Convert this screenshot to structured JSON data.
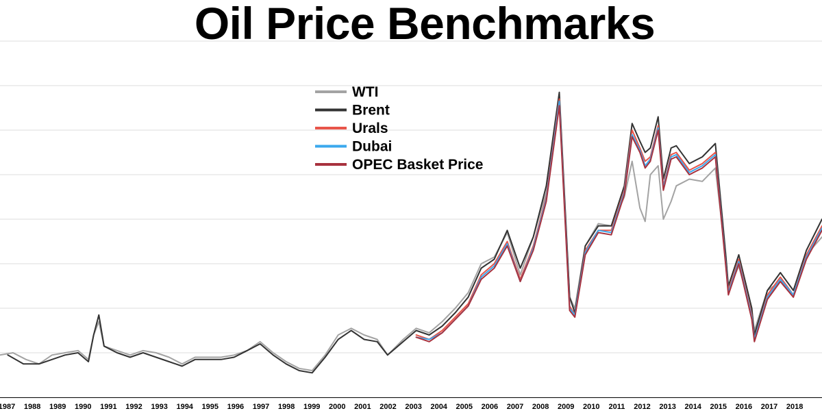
{
  "title": "Oil Price Benchmarks",
  "chart_data": {
    "type": "line",
    "title": "Oil Price Benchmarks",
    "xlabel": "",
    "ylabel": "",
    "xlim": [
      1987.0,
      2018.6
    ],
    "ylim": [
      0,
      160
    ],
    "grid": "horizontal",
    "legend_position": "top-center",
    "x_tick_labels": [
      "1987",
      "1988",
      "1989",
      "1990",
      "1991",
      "1992",
      "1993",
      "1994",
      "1995",
      "1996",
      "1997",
      "1998",
      "1999",
      "2000",
      "2001",
      "2002",
      "2003",
      "2004",
      "2005",
      "2006",
      "2007",
      "2008",
      "2009",
      "2010",
      "2011",
      "2012",
      "2013",
      "2014",
      "2015",
      "2016",
      "2017",
      "2018"
    ],
    "series": [
      {
        "name": "WTI",
        "color": "#a3a3a3",
        "points": [
          [
            1987.0,
            19
          ],
          [
            1987.5,
            20
          ],
          [
            1988.0,
            17
          ],
          [
            1988.5,
            15
          ],
          [
            1989.0,
            19
          ],
          [
            1989.5,
            20
          ],
          [
            1990.0,
            21
          ],
          [
            1990.4,
            17
          ],
          [
            1990.6,
            28
          ],
          [
            1990.8,
            34
          ],
          [
            1991.0,
            23
          ],
          [
            1991.5,
            21
          ],
          [
            1992.0,
            19
          ],
          [
            1992.5,
            21
          ],
          [
            1993.0,
            20
          ],
          [
            1993.5,
            18
          ],
          [
            1994.0,
            15
          ],
          [
            1994.5,
            18
          ],
          [
            1995.0,
            18
          ],
          [
            1995.5,
            18
          ],
          [
            1996.0,
            19
          ],
          [
            1996.5,
            21
          ],
          [
            1997.0,
            25
          ],
          [
            1997.5,
            20
          ],
          [
            1998.0,
            16
          ],
          [
            1998.5,
            13
          ],
          [
            1999.0,
            12
          ],
          [
            1999.5,
            19
          ],
          [
            2000.0,
            28
          ],
          [
            2000.5,
            31
          ],
          [
            2001.0,
            28
          ],
          [
            2001.5,
            26
          ],
          [
            2001.9,
            19
          ],
          [
            2002.5,
            26
          ],
          [
            2003.0,
            31
          ],
          [
            2003.5,
            29
          ],
          [
            2004.0,
            34
          ],
          [
            2004.5,
            40
          ],
          [
            2005.0,
            47
          ],
          [
            2005.5,
            60
          ],
          [
            2006.0,
            63
          ],
          [
            2006.5,
            74
          ],
          [
            2007.0,
            55
          ],
          [
            2007.5,
            72
          ],
          [
            2008.0,
            92
          ],
          [
            2008.5,
            133
          ],
          [
            2008.9,
            45
          ],
          [
            2009.1,
            40
          ],
          [
            2009.5,
            68
          ],
          [
            2010.0,
            78
          ],
          [
            2010.5,
            77
          ],
          [
            2011.0,
            90
          ],
          [
            2011.3,
            106
          ],
          [
            2011.6,
            85
          ],
          [
            2011.8,
            79
          ],
          [
            2012.0,
            100
          ],
          [
            2012.3,
            104
          ],
          [
            2012.5,
            80
          ],
          [
            2012.8,
            88
          ],
          [
            2013.0,
            95
          ],
          [
            2013.5,
            98
          ],
          [
            2014.0,
            97
          ],
          [
            2014.5,
            103
          ],
          [
            2014.9,
            63
          ],
          [
            2015.0,
            48
          ],
          [
            2015.4,
            59
          ],
          [
            2015.9,
            38
          ],
          [
            2016.0,
            30
          ],
          [
            2016.5,
            48
          ],
          [
            2017.0,
            52
          ],
          [
            2017.5,
            46
          ],
          [
            2018.0,
            64
          ],
          [
            2018.6,
            72
          ]
        ]
      },
      {
        "name": "Brent",
        "color": "#333333",
        "points": [
          [
            1987.3,
            19
          ],
          [
            1987.9,
            15
          ],
          [
            1988.5,
            15
          ],
          [
            1989.0,
            17
          ],
          [
            1989.5,
            19
          ],
          [
            1990.0,
            20
          ],
          [
            1990.4,
            16
          ],
          [
            1990.6,
            28
          ],
          [
            1990.8,
            37
          ],
          [
            1991.0,
            23
          ],
          [
            1991.5,
            20
          ],
          [
            1992.0,
            18
          ],
          [
            1992.5,
            20
          ],
          [
            1993.0,
            18
          ],
          [
            1993.5,
            16
          ],
          [
            1994.0,
            14
          ],
          [
            1994.5,
            17
          ],
          [
            1995.0,
            17
          ],
          [
            1995.5,
            17
          ],
          [
            1996.0,
            18
          ],
          [
            1996.5,
            21
          ],
          [
            1997.0,
            24
          ],
          [
            1997.5,
            19
          ],
          [
            1998.0,
            15
          ],
          [
            1998.5,
            12
          ],
          [
            1999.0,
            11
          ],
          [
            1999.5,
            18
          ],
          [
            2000.0,
            26
          ],
          [
            2000.5,
            30
          ],
          [
            2001.0,
            26
          ],
          [
            2001.5,
            25
          ],
          [
            2001.9,
            19
          ],
          [
            2002.5,
            25
          ],
          [
            2003.0,
            30
          ],
          [
            2003.5,
            28
          ],
          [
            2004.0,
            32
          ],
          [
            2004.5,
            38
          ],
          [
            2005.0,
            45
          ],
          [
            2005.5,
            58
          ],
          [
            2006.0,
            62
          ],
          [
            2006.5,
            75
          ],
          [
            2007.0,
            58
          ],
          [
            2007.5,
            72
          ],
          [
            2008.0,
            95
          ],
          [
            2008.5,
            137
          ],
          [
            2008.9,
            45
          ],
          [
            2009.1,
            38
          ],
          [
            2009.5,
            68
          ],
          [
            2010.0,
            77
          ],
          [
            2010.5,
            77
          ],
          [
            2011.0,
            95
          ],
          [
            2011.3,
            123
          ],
          [
            2011.6,
            115
          ],
          [
            2011.8,
            110
          ],
          [
            2012.0,
            112
          ],
          [
            2012.3,
            126
          ],
          [
            2012.5,
            98
          ],
          [
            2012.8,
            112
          ],
          [
            2013.0,
            113
          ],
          [
            2013.5,
            105
          ],
          [
            2014.0,
            108
          ],
          [
            2014.5,
            114
          ],
          [
            2014.9,
            64
          ],
          [
            2015.0,
            50
          ],
          [
            2015.4,
            64
          ],
          [
            2015.9,
            40
          ],
          [
            2016.0,
            28
          ],
          [
            2016.5,
            48
          ],
          [
            2017.0,
            56
          ],
          [
            2017.5,
            48
          ],
          [
            2018.0,
            66
          ],
          [
            2018.6,
            80
          ]
        ]
      },
      {
        "name": "Urals",
        "color": "#e8554a",
        "points": [
          [
            2003.0,
            28
          ],
          [
            2003.5,
            26
          ],
          [
            2004.0,
            30
          ],
          [
            2004.5,
            36
          ],
          [
            2005.0,
            42
          ],
          [
            2005.5,
            55
          ],
          [
            2006.0,
            60
          ],
          [
            2006.5,
            70
          ],
          [
            2007.0,
            53
          ],
          [
            2007.5,
            68
          ],
          [
            2008.0,
            90
          ],
          [
            2008.5,
            134
          ],
          [
            2008.9,
            41
          ],
          [
            2009.1,
            37
          ],
          [
            2009.5,
            66
          ],
          [
            2010.0,
            75
          ],
          [
            2010.5,
            75
          ],
          [
            2011.0,
            93
          ],
          [
            2011.3,
            120
          ],
          [
            2011.6,
            112
          ],
          [
            2011.8,
            106
          ],
          [
            2012.0,
            108
          ],
          [
            2012.3,
            122
          ],
          [
            2012.5,
            95
          ],
          [
            2012.8,
            109
          ],
          [
            2013.0,
            110
          ],
          [
            2013.5,
            102
          ],
          [
            2014.0,
            105
          ],
          [
            2014.5,
            110
          ],
          [
            2014.9,
            60
          ],
          [
            2015.0,
            48
          ],
          [
            2015.4,
            62
          ],
          [
            2015.9,
            37
          ],
          [
            2016.0,
            26
          ],
          [
            2016.5,
            46
          ],
          [
            2017.0,
            54
          ],
          [
            2017.5,
            46
          ],
          [
            2018.0,
            64
          ],
          [
            2018.6,
            77
          ]
        ]
      },
      {
        "name": "Dubai",
        "color": "#3ba9ee",
        "points": [
          [
            2003.0,
            27
          ],
          [
            2003.5,
            26
          ],
          [
            2004.0,
            29
          ],
          [
            2004.5,
            35
          ],
          [
            2005.0,
            41
          ],
          [
            2005.5,
            54
          ],
          [
            2006.0,
            59
          ],
          [
            2006.5,
            69
          ],
          [
            2007.0,
            52
          ],
          [
            2007.5,
            67
          ],
          [
            2008.0,
            89
          ],
          [
            2008.5,
            133
          ],
          [
            2008.9,
            40
          ],
          [
            2009.1,
            37
          ],
          [
            2009.5,
            65
          ],
          [
            2010.0,
            75
          ],
          [
            2010.5,
            74
          ],
          [
            2011.0,
            92
          ],
          [
            2011.3,
            118
          ],
          [
            2011.6,
            111
          ],
          [
            2011.8,
            104
          ],
          [
            2012.0,
            107
          ],
          [
            2012.3,
            121
          ],
          [
            2012.5,
            94
          ],
          [
            2012.8,
            108
          ],
          [
            2013.0,
            109
          ],
          [
            2013.5,
            101
          ],
          [
            2014.0,
            104
          ],
          [
            2014.5,
            109
          ],
          [
            2014.9,
            60
          ],
          [
            2015.0,
            47
          ],
          [
            2015.4,
            61
          ],
          [
            2015.9,
            36
          ],
          [
            2016.0,
            26
          ],
          [
            2016.5,
            45
          ],
          [
            2017.0,
            53
          ],
          [
            2017.5,
            46
          ],
          [
            2018.0,
            63
          ],
          [
            2018.6,
            76
          ]
        ]
      },
      {
        "name": "OPEC Basket Price",
        "color": "#a8323e",
        "points": [
          [
            2003.0,
            27
          ],
          [
            2003.5,
            25
          ],
          [
            2004.0,
            29
          ],
          [
            2004.5,
            35
          ],
          [
            2005.0,
            41
          ],
          [
            2005.5,
            53
          ],
          [
            2006.0,
            58
          ],
          [
            2006.5,
            68
          ],
          [
            2007.0,
            52
          ],
          [
            2007.5,
            66
          ],
          [
            2008.0,
            88
          ],
          [
            2008.5,
            131
          ],
          [
            2008.9,
            39
          ],
          [
            2009.1,
            36
          ],
          [
            2009.5,
            64
          ],
          [
            2010.0,
            74
          ],
          [
            2010.5,
            73
          ],
          [
            2011.0,
            91
          ],
          [
            2011.3,
            117
          ],
          [
            2011.6,
            110
          ],
          [
            2011.8,
            103
          ],
          [
            2012.0,
            106
          ],
          [
            2012.3,
            120
          ],
          [
            2012.5,
            93
          ],
          [
            2012.8,
            107
          ],
          [
            2013.0,
            108
          ],
          [
            2013.5,
            100
          ],
          [
            2014.0,
            103
          ],
          [
            2014.5,
            108
          ],
          [
            2014.9,
            59
          ],
          [
            2015.0,
            46
          ],
          [
            2015.4,
            60
          ],
          [
            2015.9,
            35
          ],
          [
            2016.0,
            25
          ],
          [
            2016.5,
            44
          ],
          [
            2017.0,
            52
          ],
          [
            2017.5,
            45
          ],
          [
            2018.0,
            62
          ],
          [
            2018.6,
            75
          ]
        ]
      }
    ]
  }
}
